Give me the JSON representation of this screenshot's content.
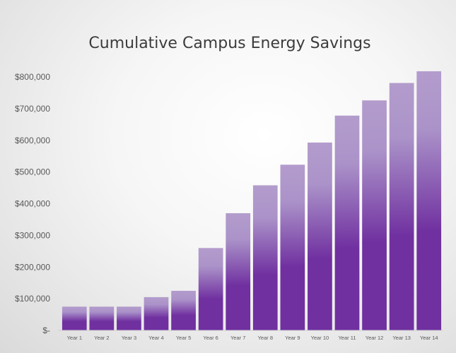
{
  "chart_data": {
    "type": "bar",
    "title": "Cumulative Campus Energy Savings",
    "xlabel": "",
    "ylabel": "",
    "categories": [
      "Year 1",
      "Year 2",
      "Year 3",
      "Year 4",
      "Year 5",
      "Year 6",
      "Year 7",
      "Year 8",
      "Year 9",
      "Year 10",
      "Year 11",
      "Year 12",
      "Year 13",
      "Year 14"
    ],
    "values": [
      75000,
      75000,
      75000,
      105000,
      125000,
      260000,
      370000,
      458000,
      523000,
      593000,
      678000,
      726000,
      781000,
      818000
    ],
    "ylim": [
      0,
      800000
    ],
    "y_ticks": [
      0,
      100000,
      200000,
      300000,
      400000,
      500000,
      600000,
      700000,
      800000
    ],
    "y_tick_labels": [
      "$-",
      "$100,000",
      "$200,000",
      "$300,000",
      "$400,000",
      "$500,000",
      "$600,000",
      "$700,000",
      "$800,000"
    ],
    "grid": false,
    "legend": "none",
    "colors": {
      "bar_top": "#b39ccc",
      "bar_mid": "#ab93c9",
      "bar_bottom": "#7030a0"
    }
  }
}
